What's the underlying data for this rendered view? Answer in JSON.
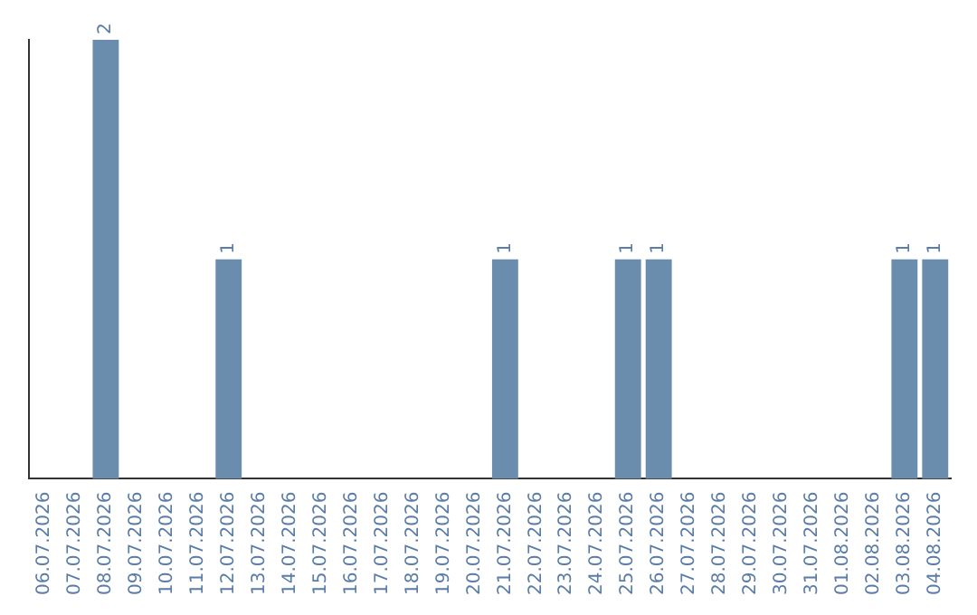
{
  "chart_data": {
    "type": "bar",
    "categories": [
      "06.07.2026",
      "07.07.2026",
      "08.07.2026",
      "09.07.2026",
      "10.07.2026",
      "11.07.2026",
      "12.07.2026",
      "13.07.2026",
      "14.07.2026",
      "15.07.2026",
      "16.07.2026",
      "17.07.2026",
      "18.07.2026",
      "19.07.2026",
      "20.07.2026",
      "21.07.2026",
      "22.07.2026",
      "23.07.2026",
      "24.07.2026",
      "25.07.2026",
      "26.07.2026",
      "27.07.2026",
      "28.07.2026",
      "29.07.2026",
      "30.07.2026",
      "31.07.2026",
      "01.08.2026",
      "02.08.2026",
      "03.08.2026",
      "04.08.2026"
    ],
    "values": [
      0,
      0,
      2,
      0,
      0,
      0,
      1,
      0,
      0,
      0,
      0,
      0,
      0,
      0,
      0,
      1,
      0,
      0,
      0,
      1,
      1,
      0,
      0,
      0,
      0,
      0,
      0,
      0,
      1,
      1
    ],
    "value_labels": [
      null,
      null,
      "2",
      null,
      null,
      null,
      "1",
      null,
      null,
      null,
      null,
      null,
      null,
      null,
      null,
      "1",
      null,
      null,
      null,
      "1",
      "1",
      null,
      null,
      null,
      null,
      null,
      null,
      null,
      "1",
      "1"
    ],
    "color": "#6a8cad",
    "tick_labels": "x",
    "grid": false,
    "legend": false
  }
}
